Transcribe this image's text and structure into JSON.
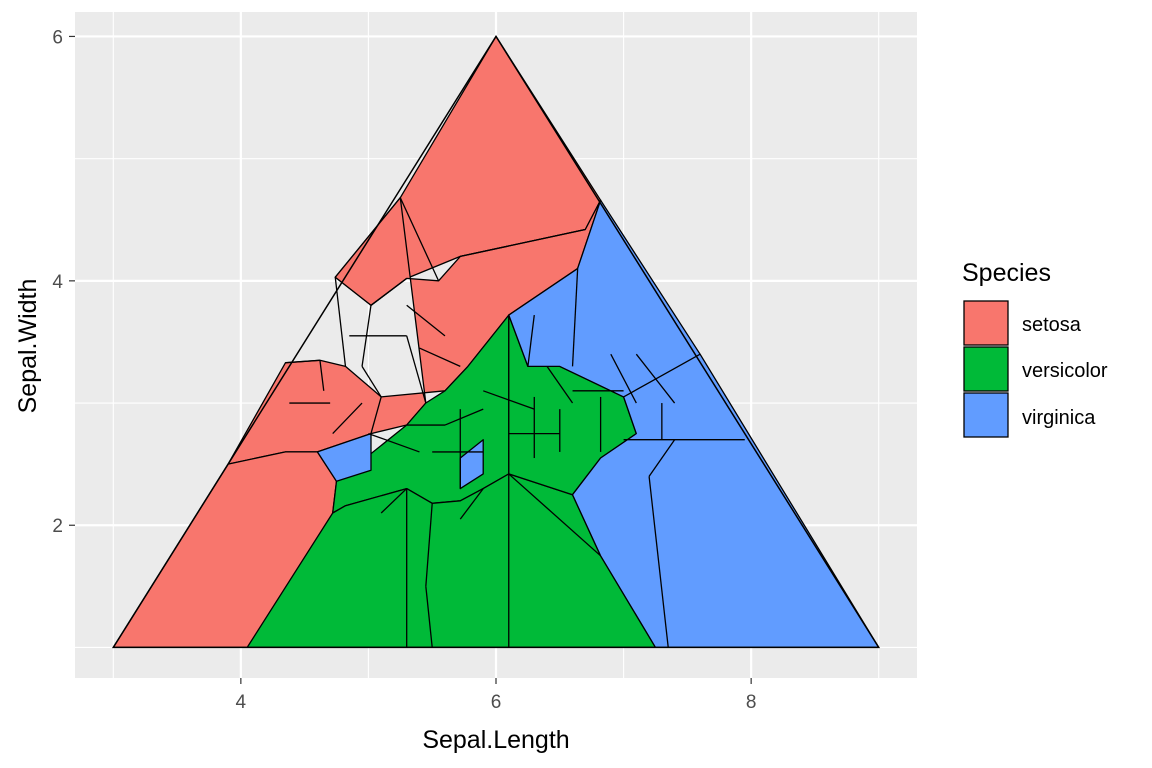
{
  "chart_data": {
    "type": "voronoi",
    "xlabel": "Sepal.Length",
    "ylabel": "Sepal.Width",
    "xlim": [
      2.7,
      9.3
    ],
    "ylim": [
      0.75,
      6.2
    ],
    "x_ticks": [
      4,
      6,
      8
    ],
    "y_ticks": [
      2,
      4,
      6
    ],
    "grid": true,
    "bounding_triangle": [
      [
        3,
        1
      ],
      [
        6,
        6
      ],
      [
        9,
        1
      ]
    ],
    "legend": {
      "title": "Species",
      "position": "right",
      "entries": [
        {
          "name": "setosa",
          "color": "#F8766D"
        },
        {
          "name": "versicolor",
          "color": "#00BA38"
        },
        {
          "name": "virginica",
          "color": "#619CFF"
        }
      ]
    },
    "regions": [
      {
        "species": "setosa",
        "polygon": [
          [
            6.0,
            6.0
          ],
          [
            6.82,
            4.66
          ],
          [
            6.7,
            4.42
          ],
          [
            5.72,
            4.2
          ],
          [
            5.3,
            4.02
          ],
          [
            5.02,
            3.8
          ],
          [
            4.74,
            4.03
          ],
          [
            5.25,
            4.68
          ]
        ]
      },
      {
        "species": "setosa",
        "polygon": [
          [
            5.25,
            4.68
          ],
          [
            4.74,
            4.03
          ],
          [
            5.02,
            3.8
          ],
          [
            5.3,
            4.02
          ],
          [
            5.55,
            4.0
          ],
          [
            5.72,
            4.2
          ],
          [
            6.7,
            4.42
          ],
          [
            6.82,
            4.66
          ],
          [
            6.64,
            4.1
          ],
          [
            6.1,
            3.72
          ],
          [
            5.78,
            3.3
          ],
          [
            5.6,
            3.1
          ],
          [
            5.1,
            3.05
          ],
          [
            4.82,
            3.3
          ],
          [
            4.62,
            3.35
          ],
          [
            4.35,
            3.33
          ],
          [
            3.9,
            2.5
          ],
          [
            4.35,
            2.6
          ],
          [
            4.6,
            2.6
          ],
          [
            5.02,
            2.75
          ],
          [
            5.3,
            2.82
          ],
          [
            5.45,
            3.0
          ]
        ]
      },
      {
        "species": "setosa",
        "polygon": [
          [
            3.0,
            1.0
          ],
          [
            3.9,
            2.5
          ],
          [
            4.35,
            2.6
          ],
          [
            4.6,
            2.6
          ],
          [
            4.75,
            2.36
          ],
          [
            4.72,
            2.1
          ],
          [
            4.35,
            1.0
          ]
        ]
      },
      {
        "species": "versicolor",
        "polygon": [
          [
            4.72,
            2.1
          ],
          [
            4.75,
            2.36
          ],
          [
            5.3,
            2.82
          ],
          [
            5.45,
            3.0
          ],
          [
            5.6,
            3.1
          ],
          [
            5.78,
            3.3
          ],
          [
            6.1,
            3.72
          ],
          [
            6.1,
            2.42
          ],
          [
            5.9,
            2.3
          ],
          [
            5.72,
            2.2
          ],
          [
            5.5,
            2.18
          ],
          [
            5.3,
            2.3
          ],
          [
            4.82,
            2.16
          ]
        ]
      },
      {
        "species": "versicolor",
        "polygon": [
          [
            4.05,
            1.0
          ],
          [
            4.72,
            2.1
          ],
          [
            4.82,
            2.16
          ],
          [
            5.3,
            2.3
          ],
          [
            5.5,
            2.18
          ],
          [
            5.72,
            2.2
          ],
          [
            5.9,
            2.3
          ],
          [
            6.1,
            2.42
          ],
          [
            6.6,
            2.25
          ],
          [
            6.82,
            1.75
          ],
          [
            7.25,
            1.0
          ]
        ]
      },
      {
        "species": "versicolor",
        "polygon": [
          [
            6.1,
            3.72
          ],
          [
            6.1,
            2.42
          ],
          [
            6.6,
            2.25
          ],
          [
            6.82,
            2.55
          ],
          [
            7.1,
            2.75
          ],
          [
            7.0,
            3.05
          ],
          [
            6.5,
            3.3
          ],
          [
            6.25,
            3.3
          ]
        ]
      },
      {
        "species": "virginica",
        "polygon": [
          [
            6.82,
            4.66
          ],
          [
            6.64,
            4.1
          ],
          [
            6.1,
            3.72
          ],
          [
            6.25,
            3.3
          ],
          [
            6.5,
            3.3
          ],
          [
            7.0,
            3.05
          ],
          [
            7.1,
            2.75
          ],
          [
            6.82,
            2.55
          ],
          [
            6.6,
            2.25
          ],
          [
            6.82,
            1.75
          ],
          [
            7.25,
            1.0
          ],
          [
            9.0,
            1.0
          ],
          [
            7.6,
            3.4
          ]
        ]
      },
      {
        "species": "virginica",
        "polygon": [
          [
            4.6,
            2.6
          ],
          [
            4.75,
            2.36
          ],
          [
            5.02,
            2.45
          ],
          [
            5.02,
            2.75
          ]
        ]
      },
      {
        "species": "virginica",
        "polygon": [
          [
            5.72,
            2.55
          ],
          [
            5.9,
            2.7
          ],
          [
            5.9,
            2.42
          ],
          [
            5.72,
            2.3
          ]
        ]
      }
    ],
    "edges": [
      [
        [
          5.25,
          4.68
        ],
        [
          5.55,
          4.0
        ]
      ],
      [
        [
          5.72,
          4.2
        ],
        [
          6.7,
          4.42
        ]
      ],
      [
        [
          5.3,
          4.02
        ],
        [
          5.02,
          3.8
        ]
      ],
      [
        [
          4.74,
          4.03
        ],
        [
          4.82,
          3.3
        ]
      ],
      [
        [
          5.02,
          3.8
        ],
        [
          4.95,
          3.3
        ]
      ],
      [
        [
          4.62,
          3.35
        ],
        [
          4.65,
          3.1
        ]
      ],
      [
        [
          4.35,
          3.33
        ],
        [
          4.62,
          3.35
        ]
      ],
      [
        [
          4.38,
          3.0
        ],
        [
          4.7,
          3.0
        ]
      ],
      [
        [
          4.85,
          3.55
        ],
        [
          5.3,
          3.55
        ]
      ],
      [
        [
          5.1,
          3.05
        ],
        [
          5.02,
          2.75
        ]
      ],
      [
        [
          4.95,
          3.3
        ],
        [
          5.1,
          3.05
        ]
      ],
      [
        [
          5.3,
          3.55
        ],
        [
          5.45,
          3.0
        ]
      ],
      [
        [
          4.72,
          2.75
        ],
        [
          4.95,
          3.0
        ]
      ],
      [
        [
          5.4,
          3.45
        ],
        [
          5.72,
          3.3
        ]
      ],
      [
        [
          5.3,
          3.8
        ],
        [
          5.6,
          3.55
        ]
      ],
      [
        [
          5.0,
          2.75
        ],
        [
          5.4,
          2.6
        ]
      ],
      [
        [
          5.3,
          2.82
        ],
        [
          5.6,
          2.82
        ]
      ],
      [
        [
          5.6,
          2.82
        ],
        [
          5.9,
          2.95
        ]
      ],
      [
        [
          5.5,
          2.6
        ],
        [
          5.9,
          2.6
        ]
      ],
      [
        [
          5.72,
          2.95
        ],
        [
          5.72,
          2.3
        ]
      ],
      [
        [
          5.9,
          3.1
        ],
        [
          6.3,
          2.95
        ]
      ],
      [
        [
          6.1,
          2.75
        ],
        [
          6.5,
          2.75
        ]
      ],
      [
        [
          6.3,
          3.05
        ],
        [
          6.3,
          2.55
        ]
      ],
      [
        [
          6.5,
          2.95
        ],
        [
          6.5,
          2.6
        ]
      ],
      [
        [
          6.6,
          3.1
        ],
        [
          7.0,
          3.1
        ]
      ],
      [
        [
          6.82,
          3.05
        ],
        [
          6.82,
          2.6
        ]
      ],
      [
        [
          6.4,
          3.3
        ],
        [
          6.6,
          3.0
        ]
      ],
      [
        [
          5.3,
          2.3
        ],
        [
          5.1,
          2.1
        ]
      ],
      [
        [
          5.5,
          2.18
        ],
        [
          5.45,
          1.5
        ]
      ],
      [
        [
          5.45,
          1.5
        ],
        [
          5.5,
          1.0
        ]
      ],
      [
        [
          6.1,
          2.42
        ],
        [
          6.1,
          1.0
        ]
      ],
      [
        [
          6.1,
          2.42
        ],
        [
          6.82,
          1.75
        ]
      ],
      [
        [
          5.9,
          2.3
        ],
        [
          5.72,
          2.05
        ]
      ],
      [
        [
          5.3,
          2.3
        ],
        [
          5.3,
          1.0
        ]
      ],
      [
        [
          6.3,
          3.72
        ],
        [
          6.25,
          3.3
        ]
      ],
      [
        [
          6.64,
          4.1
        ],
        [
          6.6,
          3.3
        ]
      ],
      [
        [
          6.9,
          3.4
        ],
        [
          7.1,
          3.0
        ]
      ],
      [
        [
          7.1,
          3.4
        ],
        [
          7.4,
          3.0
        ]
      ],
      [
        [
          7.3,
          3.0
        ],
        [
          7.3,
          2.7
        ]
      ],
      [
        [
          7.0,
          2.7
        ],
        [
          7.95,
          2.7
        ]
      ],
      [
        [
          7.2,
          2.4
        ],
        [
          7.4,
          2.7
        ]
      ],
      [
        [
          7.2,
          2.4
        ],
        [
          7.35,
          1.0
        ]
      ],
      [
        [
          7.0,
          3.05
        ],
        [
          7.6,
          3.4
        ]
      ]
    ]
  }
}
